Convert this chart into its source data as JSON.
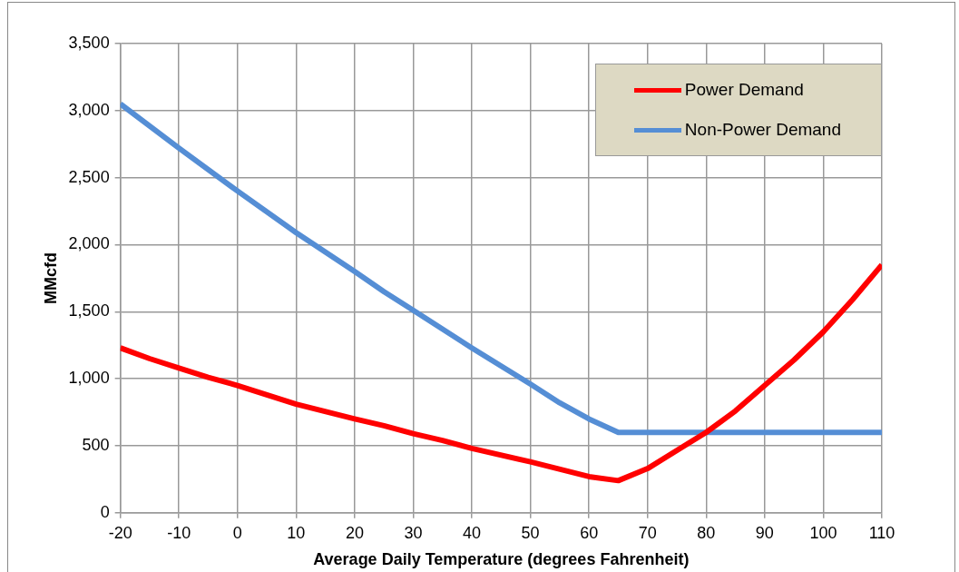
{
  "chart_data": {
    "type": "line",
    "xlabel": "Average Daily Temperature (degrees Fahrenheit)",
    "ylabel": "MMcfd",
    "xlim": [
      -20,
      110
    ],
    "xticks": [
      -20,
      -10,
      0,
      10,
      20,
      30,
      40,
      50,
      60,
      70,
      80,
      90,
      100,
      110
    ],
    "ylim": [
      0,
      3500
    ],
    "yticks": [
      {
        "value": 0,
        "label": "0"
      },
      {
        "value": 500,
        "label": "500"
      },
      {
        "value": 1000,
        "label": "1,000"
      },
      {
        "value": 1500,
        "label": "1,500"
      },
      {
        "value": 2000,
        "label": "2,000"
      },
      {
        "value": 2500,
        "label": "2,500"
      },
      {
        "value": 3000,
        "label": "3,000"
      },
      {
        "value": 3500,
        "label": "3,500"
      }
    ],
    "grid": true,
    "legend": "top right",
    "marker": "none",
    "line_style": "solid",
    "series": [
      {
        "name": "Power Demand",
        "color": "#ff0000",
        "x": [
          -20,
          -15,
          -10,
          -5,
          0,
          10,
          20,
          25,
          30,
          35,
          40,
          50,
          60,
          65,
          70,
          80,
          85,
          90,
          95,
          100,
          105,
          110
        ],
        "values": [
          1230,
          1150,
          1080,
          1010,
          950,
          810,
          700,
          650,
          590,
          540,
          480,
          380,
          270,
          240,
          330,
          600,
          760,
          950,
          1140,
          1350,
          1590,
          1850
        ]
      },
      {
        "name": "Non-Power Demand",
        "color": "#558ed5",
        "x": [
          -20,
          -10,
          0,
          10,
          20,
          25,
          30,
          40,
          50,
          55,
          60,
          65,
          70,
          80,
          90,
          100,
          110
        ],
        "values": [
          3050,
          2720,
          2400,
          2090,
          1800,
          1650,
          1510,
          1230,
          960,
          820,
          700,
          600,
          600,
          600,
          600,
          600,
          600
        ]
      }
    ]
  }
}
